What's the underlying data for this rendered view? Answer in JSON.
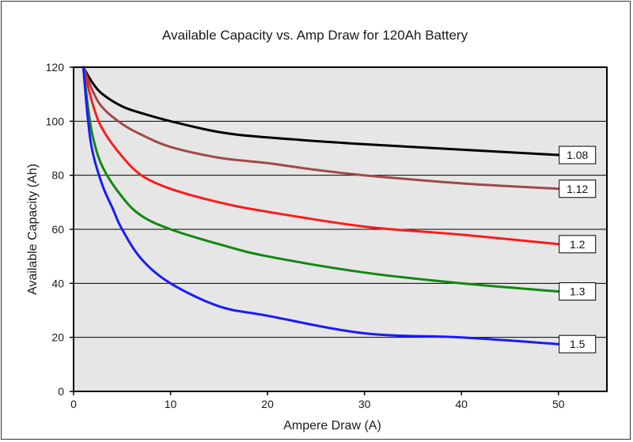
{
  "chart_data": {
    "type": "line",
    "title": "Available Capacity vs. Amp Draw for 120Ah Battery",
    "xlabel": "Ampere Draw (A)",
    "ylabel": "Available Capacity (Ah)",
    "xlim": [
      0,
      55
    ],
    "ylim": [
      0,
      120
    ],
    "x_ticks": [
      "0",
      "10",
      "20",
      "30",
      "40",
      "50"
    ],
    "y_ticks": [
      "0",
      "20",
      "40",
      "60",
      "80",
      "100",
      "120"
    ],
    "grid": "horizontal",
    "legend": "inline labels at right end of each curve",
    "series": [
      {
        "name": "1.08",
        "color": "#000000",
        "points": [
          [
            1,
            120
          ],
          [
            2,
            114
          ],
          [
            3,
            110
          ],
          [
            5,
            105.5
          ],
          [
            7,
            103
          ],
          [
            10,
            100
          ],
          [
            15,
            96
          ],
          [
            20,
            94
          ],
          [
            30,
            91.5
          ],
          [
            40,
            89.5
          ],
          [
            50,
            87.5
          ]
        ]
      },
      {
        "name": "1.12",
        "color": "#a04848",
        "points": [
          [
            1,
            120
          ],
          [
            2,
            111
          ],
          [
            3,
            105
          ],
          [
            5,
            99
          ],
          [
            7,
            95
          ],
          [
            10,
            90.5
          ],
          [
            15,
            86.5
          ],
          [
            20,
            84.5
          ],
          [
            25,
            82
          ],
          [
            30,
            80
          ],
          [
            40,
            77
          ],
          [
            50,
            75
          ]
        ]
      },
      {
        "name": "1.2",
        "color": "#ff1a1a",
        "points": [
          [
            1,
            120
          ],
          [
            2,
            106
          ],
          [
            3,
            97
          ],
          [
            5,
            87
          ],
          [
            7,
            80
          ],
          [
            10,
            75
          ],
          [
            15,
            70
          ],
          [
            20,
            66.5
          ],
          [
            30,
            61
          ],
          [
            40,
            58
          ],
          [
            50,
            54.5
          ]
        ]
      },
      {
        "name": "1.3",
        "color": "#108810",
        "points": [
          [
            1,
            120
          ],
          [
            1.5,
            105
          ],
          [
            2,
            94
          ],
          [
            3,
            83
          ],
          [
            5,
            72
          ],
          [
            7,
            65
          ],
          [
            10,
            60
          ],
          [
            15,
            54.5
          ],
          [
            20,
            50
          ],
          [
            30,
            44
          ],
          [
            40,
            40
          ],
          [
            50,
            37
          ]
        ]
      },
      {
        "name": "1.5",
        "color": "#1a1aff",
        "points": [
          [
            1,
            120
          ],
          [
            1.5,
            100
          ],
          [
            2,
            88
          ],
          [
            3,
            76
          ],
          [
            4,
            68
          ],
          [
            5,
            60
          ],
          [
            7,
            49
          ],
          [
            10,
            40
          ],
          [
            15,
            31.5
          ],
          [
            20,
            28
          ],
          [
            30,
            21.5
          ],
          [
            40,
            20
          ],
          [
            50,
            17.5
          ]
        ]
      }
    ]
  }
}
